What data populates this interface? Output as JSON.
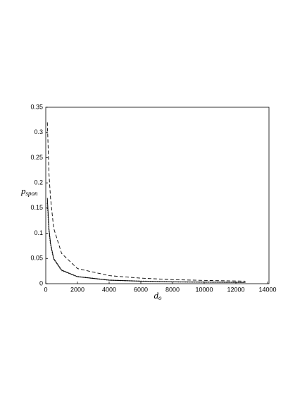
{
  "chart_data": {
    "type": "line",
    "xlabel": "d",
    "xlabel_sub": "o",
    "ylabel": "p",
    "ylabel_sub": "spon",
    "x": [
      100,
      200,
      300,
      500,
      1000,
      2000,
      4000,
      6000,
      8000,
      10000,
      12600
    ],
    "series": [
      {
        "color": "#000000",
        "style": "dashed",
        "values": [
          0.32,
          0.22,
          0.17,
          0.11,
          0.06,
          0.03,
          0.016,
          0.011,
          0.008,
          0.0065,
          0.005
        ]
      },
      {
        "color": "#000000",
        "style": "solid",
        "values": [
          0.17,
          0.11,
          0.08,
          0.05,
          0.027,
          0.014,
          0.007,
          0.005,
          0.0035,
          0.003,
          0.0025
        ]
      },
      {
        "color": "#000000",
        "style": "dotted",
        "values": [
          0.16,
          0.105,
          0.078,
          0.049,
          0.026,
          0.014,
          0.007,
          0.005,
          0.0036,
          0.003,
          0.0026
        ]
      }
    ],
    "xlim": [
      0,
      14000
    ],
    "xticks": [
      0,
      2000,
      4000,
      6000,
      8000,
      10000,
      12000,
      14000
    ],
    "ylim": [
      0,
      0.35
    ],
    "yticks": [
      0,
      0.05,
      0.1,
      0.15,
      0.2,
      0.25,
      0.3,
      0.35
    ]
  }
}
